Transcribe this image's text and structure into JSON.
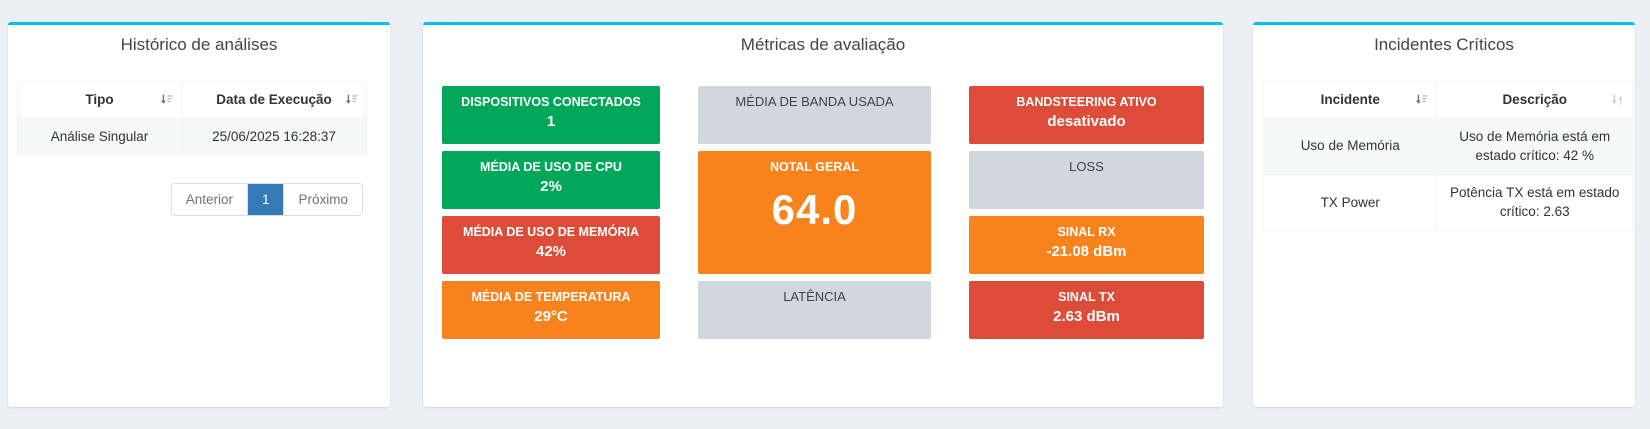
{
  "colors": {
    "page_background": "#ecf0f5",
    "accent_top_border": "#00c0ef",
    "green": "#00a65a",
    "red": "#dd4b39",
    "orange": "#f8831d",
    "gray": "#d2d6de",
    "active_page": "#337ab7"
  },
  "history_panel": {
    "title": "Histórico de análises",
    "columns": [
      {
        "label": "Tipo",
        "icon": "sort-amount"
      },
      {
        "label": "Data de Execução",
        "icon": "sort-amount"
      }
    ],
    "rows": [
      [
        "Análise Singular",
        "25/06/2025 16:28:37"
      ]
    ],
    "pagination": {
      "prev": "Anterior",
      "page": "1",
      "next": "Próximo"
    }
  },
  "metrics_panel": {
    "title": "Métricas de avaliação",
    "tiles": [
      {
        "id": "dispositivos-conectados",
        "label": "DISPOSITIVOS CONECTADOS",
        "value": "1",
        "color": "green",
        "col": 1,
        "row": 1
      },
      {
        "id": "media-uso-cpu",
        "label": "MÉDIA DE USO DE CPU",
        "value": "2%",
        "color": "green",
        "col": 1,
        "row": 2
      },
      {
        "id": "media-uso-memoria",
        "label": "MÉDIA DE USO DE MEMÓRIA",
        "value": "42%",
        "color": "red",
        "col": 1,
        "row": 3
      },
      {
        "id": "media-temperatura",
        "label": "MÉDIA DE TEMPERATURA",
        "value": "29°C",
        "color": "orange",
        "col": 1,
        "row": 4
      },
      {
        "id": "media-banda-usada",
        "label": "MÉDIA DE BANDA USADA",
        "value": "",
        "color": "gray",
        "col": 2,
        "row": 1
      },
      {
        "id": "nota-geral",
        "label": "NOTAL GERAL",
        "value": "64.0",
        "color": "orange",
        "col": 2,
        "row": 2,
        "rowspan": 2,
        "big": true
      },
      {
        "id": "latencia",
        "label": "LATÊNCIA",
        "value": "",
        "color": "gray",
        "col": 2,
        "row": 4
      },
      {
        "id": "bandsteering-ativo",
        "label": "BANDSTEERING ATIVO",
        "value": "desativado",
        "color": "red",
        "col": 3,
        "row": 1
      },
      {
        "id": "loss",
        "label": "LOSS",
        "value": "",
        "color": "gray",
        "col": 3,
        "row": 2
      },
      {
        "id": "sinal-rx",
        "label": "SINAL RX",
        "value": "-21.08 dBm",
        "color": "orange",
        "col": 3,
        "row": 3
      },
      {
        "id": "sinal-tx",
        "label": "SINAL TX",
        "value": "2.63 dBm",
        "color": "red",
        "col": 3,
        "row": 4
      }
    ]
  },
  "incidents_panel": {
    "title": "Incidentes Críticos",
    "columns": [
      {
        "label": "Incidente",
        "icon": "sort-amount"
      },
      {
        "label": "Descrição",
        "icon": "sort-arrows"
      }
    ],
    "rows": [
      [
        "Uso de Memória",
        "Uso de Memória está em estado crítico: 42 %"
      ],
      [
        "TX Power",
        "Potência TX está em estado crítico: 2.63"
      ]
    ]
  }
}
